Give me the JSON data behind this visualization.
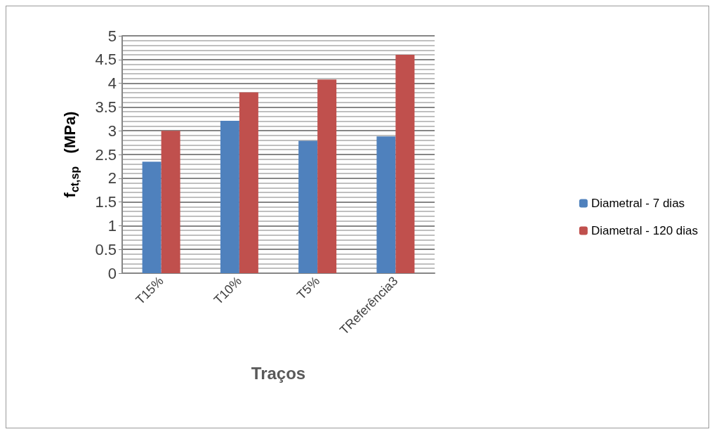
{
  "chart_data": {
    "type": "bar",
    "xlabel": "Traços",
    "ylabel": "f$_{ct,sp}$   (MPa)",
    "categories": [
      "T15%",
      "T10%",
      "T5%",
      "TReferência3"
    ],
    "series": [
      {
        "name": "Diametral - 7 dias",
        "color": "#4f81bd",
        "values": [
          2.35,
          3.21,
          2.79,
          2.88
        ]
      },
      {
        "name": "Diametral - 120 dias",
        "color": "#c0504d",
        "values": [
          3.0,
          3.81,
          4.08,
          4.6
        ]
      }
    ],
    "ylim": [
      0,
      5
    ],
    "yticks": [
      0,
      0.5,
      1,
      1.5,
      2,
      2.5,
      3,
      3.5,
      4,
      4.5,
      5
    ],
    "grid": "y",
    "legend": "right"
  }
}
